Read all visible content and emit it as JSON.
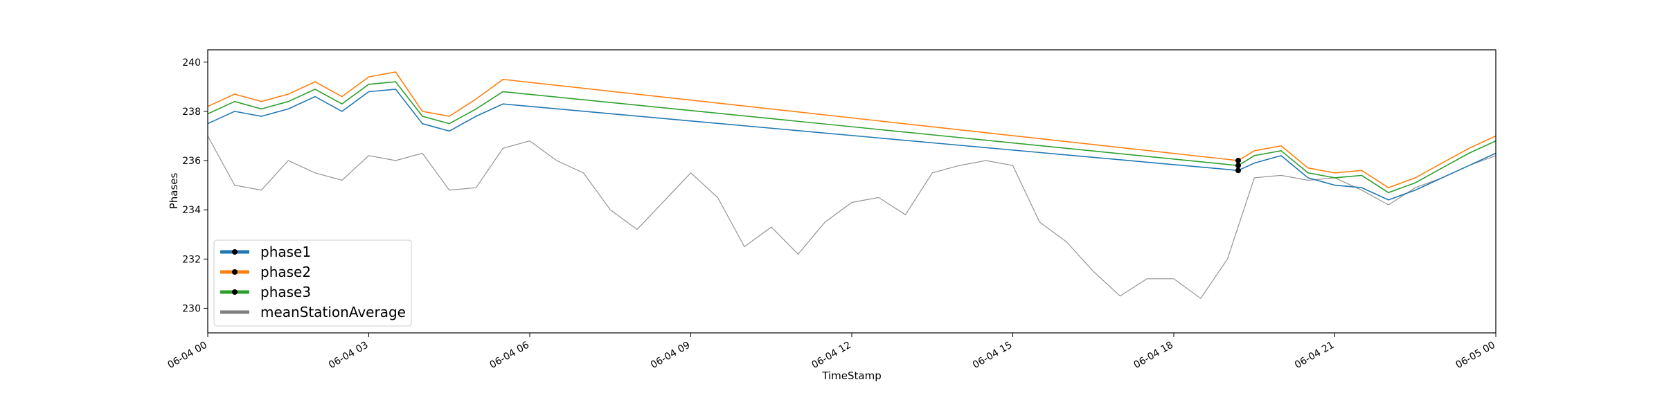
{
  "chart_data": {
    "type": "line",
    "xlabel": "TimeStamp",
    "ylabel": "Phases",
    "x_range": [
      "06-04 00:00",
      "06-05 00:00"
    ],
    "ylim": [
      229,
      240.5
    ],
    "x_ticks": [
      "06-04 00",
      "06-04 03",
      "06-04 06",
      "06-04 09",
      "06-04 12",
      "06-04 15",
      "06-04 18",
      "06-04 21",
      "06-05 00"
    ],
    "y_ticks": [
      230,
      232,
      234,
      236,
      238,
      240
    ],
    "grid": false,
    "legend_position": "lower-left",
    "colors": {
      "phase1": "#1f77b4",
      "phase2": "#ff7f0e",
      "phase3": "#2ca02c",
      "meanStationAverage": "#808080"
    },
    "x_hours": [
      0,
      0.5,
      1,
      1.5,
      2,
      2.5,
      3,
      3.5,
      4,
      4.5,
      5,
      5.5,
      19.2,
      19.5,
      20,
      20.5,
      21,
      21.5,
      22,
      22.5,
      23,
      23.5,
      24
    ],
    "series": [
      {
        "name": "phase1",
        "values": [
          237.5,
          238.0,
          237.8,
          238.1,
          238.6,
          238.0,
          238.8,
          238.9,
          237.5,
          237.2,
          237.8,
          238.3,
          235.6,
          235.9,
          236.2,
          235.3,
          235.0,
          234.9,
          234.4,
          234.8,
          235.3,
          235.8,
          236.3
        ]
      },
      {
        "name": "phase2",
        "values": [
          238.2,
          238.7,
          238.4,
          238.7,
          239.2,
          238.6,
          239.4,
          239.6,
          238.0,
          237.8,
          238.5,
          239.3,
          236.0,
          236.4,
          236.6,
          235.7,
          235.5,
          235.6,
          234.9,
          235.3,
          235.9,
          236.5,
          237.0
        ]
      },
      {
        "name": "phase3",
        "values": [
          237.9,
          238.4,
          238.1,
          238.4,
          238.9,
          238.3,
          239.1,
          239.2,
          237.8,
          237.5,
          238.1,
          238.8,
          235.8,
          236.2,
          236.4,
          235.5,
          235.3,
          235.4,
          234.7,
          235.1,
          235.7,
          236.3,
          236.8
        ]
      }
    ],
    "meanStationAverage": {
      "name": "meanStationAverage",
      "x_hours": [
        0,
        0.5,
        1,
        1.5,
        2,
        2.5,
        3,
        3.5,
        4,
        4.5,
        5,
        5.5,
        6,
        6.5,
        7,
        7.5,
        8,
        9,
        9.5,
        10,
        10.5,
        11,
        11.5,
        12,
        12.5,
        13,
        13.5,
        14,
        14.5,
        15,
        15.5,
        16,
        16.5,
        17,
        17.5,
        18,
        18.5,
        19,
        19.5,
        20,
        20.5,
        21,
        21.5,
        22,
        22.5,
        23,
        23.5,
        24
      ],
      "values": [
        237.0,
        235.0,
        234.8,
        236.0,
        235.5,
        235.2,
        236.2,
        236.0,
        236.3,
        234.8,
        234.9,
        236.5,
        236.8,
        236.0,
        235.5,
        234.0,
        233.2,
        235.5,
        234.5,
        232.5,
        233.3,
        232.2,
        233.5,
        234.3,
        234.5,
        233.8,
        235.5,
        235.8,
        236.0,
        235.8,
        233.5,
        232.7,
        231.5,
        230.5,
        231.2,
        231.2,
        230.4,
        232.0,
        235.3,
        235.4,
        235.2,
        235.3,
        234.8,
        234.2,
        234.9,
        235.3,
        235.8,
        236.2
      ]
    }
  }
}
